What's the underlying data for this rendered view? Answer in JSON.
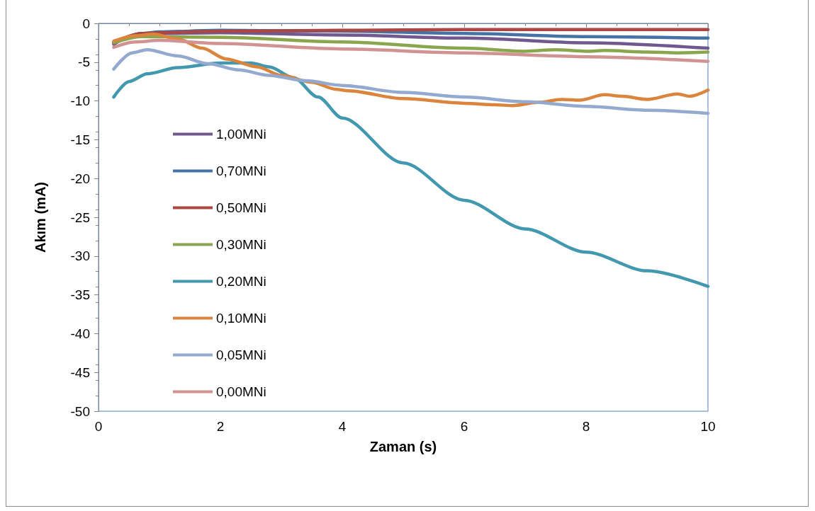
{
  "chart_data": {
    "type": "line",
    "xlabel": "Zaman (s)",
    "ylabel": "Akım (mA)",
    "xlim": [
      0,
      10
    ],
    "xticks": [
      0,
      2,
      4,
      6,
      8,
      10
    ],
    "ylim": [
      -50,
      0
    ],
    "yticks": [
      -50,
      -45,
      -40,
      -35,
      -30,
      -25,
      -20,
      -15,
      -10,
      -5,
      0
    ],
    "grid": false,
    "legend": "left",
    "marker": "none",
    "line_style": "solid",
    "series": [
      {
        "name": "1,00MNi",
        "color": "#71588f",
        "x": [
          0.25,
          0.5,
          1,
          2,
          4,
          6,
          8,
          10
        ],
        "values": [
          -2.7,
          -1.8,
          -1.3,
          -1.2,
          -1.5,
          -1.9,
          -2.5,
          -3.2
        ]
      },
      {
        "name": "0,70MNi",
        "color": "#4572a7",
        "x": [
          0.25,
          0.7,
          1,
          2,
          4,
          6,
          8,
          10
        ],
        "values": [
          -2.5,
          -1.3,
          -1.1,
          -0.9,
          -1.0,
          -1.3,
          -1.7,
          -1.9
        ]
      },
      {
        "name": "0,50MNi",
        "color": "#aa4643",
        "x": [
          0.25,
          0.7,
          1,
          2,
          4,
          6,
          8,
          10
        ],
        "values": [
          -2.5,
          -1.3,
          -1.2,
          -1.0,
          -0.9,
          -0.8,
          -0.8,
          -0.8
        ]
      },
      {
        "name": "0,30MNi",
        "color": "#89a54e",
        "x": [
          0.25,
          0.7,
          2,
          4,
          6,
          7,
          7.5,
          8,
          8.3,
          9,
          9.5,
          10
        ],
        "values": [
          -2.5,
          -1.7,
          -1.8,
          -2.4,
          -3.2,
          -3.6,
          -3.4,
          -3.6,
          -3.5,
          -3.7,
          -3.8,
          -3.7
        ]
      },
      {
        "name": "0,20MNi",
        "color": "#4198af",
        "x": [
          0.25,
          0.5,
          0.8,
          1.3,
          2,
          2.5,
          2.8,
          3.2,
          3.6,
          4,
          5,
          6,
          7,
          8,
          9,
          10
        ],
        "values": [
          -9.5,
          -7.5,
          -6.5,
          -5.7,
          -5.1,
          -5.1,
          -5.6,
          -7,
          -9.5,
          -12.2,
          -18,
          -22.8,
          -26.5,
          -29.5,
          -31.9,
          -33.9
        ]
      },
      {
        "name": "0,10MNi",
        "color": "#db843d",
        "x": [
          0.25,
          0.6,
          0.9,
          1.3,
          1.7,
          2.1,
          2.6,
          3,
          3.5,
          3.9,
          4.1,
          5,
          6,
          6.5,
          6.8,
          7.2,
          7.6,
          7.9,
          8.3,
          8.6,
          9,
          9.5,
          9.7,
          10
        ],
        "values": [
          -2.3,
          -1.6,
          -1.4,
          -2.0,
          -3.2,
          -4.6,
          -5.6,
          -6.7,
          -7.6,
          -8.5,
          -8.7,
          -9.7,
          -10.3,
          -10.5,
          -10.6,
          -10.2,
          -9.8,
          -9.9,
          -9.2,
          -9.4,
          -9.8,
          -9.1,
          -9.4,
          -8.6
        ]
      },
      {
        "name": "0,05MNi",
        "color": "#93a9cf",
        "x": [
          0.25,
          0.55,
          0.8,
          1.3,
          1.8,
          2.3,
          2.8,
          3.4,
          4,
          5,
          6,
          7,
          8,
          9,
          10
        ],
        "values": [
          -5.9,
          -3.8,
          -3.4,
          -4.2,
          -5.2,
          -6,
          -6.7,
          -7.4,
          -8,
          -8.9,
          -9.5,
          -10.1,
          -10.7,
          -11.2,
          -11.6
        ]
      },
      {
        "name": "0,00MNi",
        "color": "#d19392",
        "x": [
          0.25,
          0.6,
          1,
          2,
          4,
          6,
          8,
          10
        ],
        "values": [
          -3.1,
          -2.4,
          -2.2,
          -2.6,
          -3.3,
          -3.8,
          -4.3,
          -4.9
        ]
      }
    ]
  }
}
